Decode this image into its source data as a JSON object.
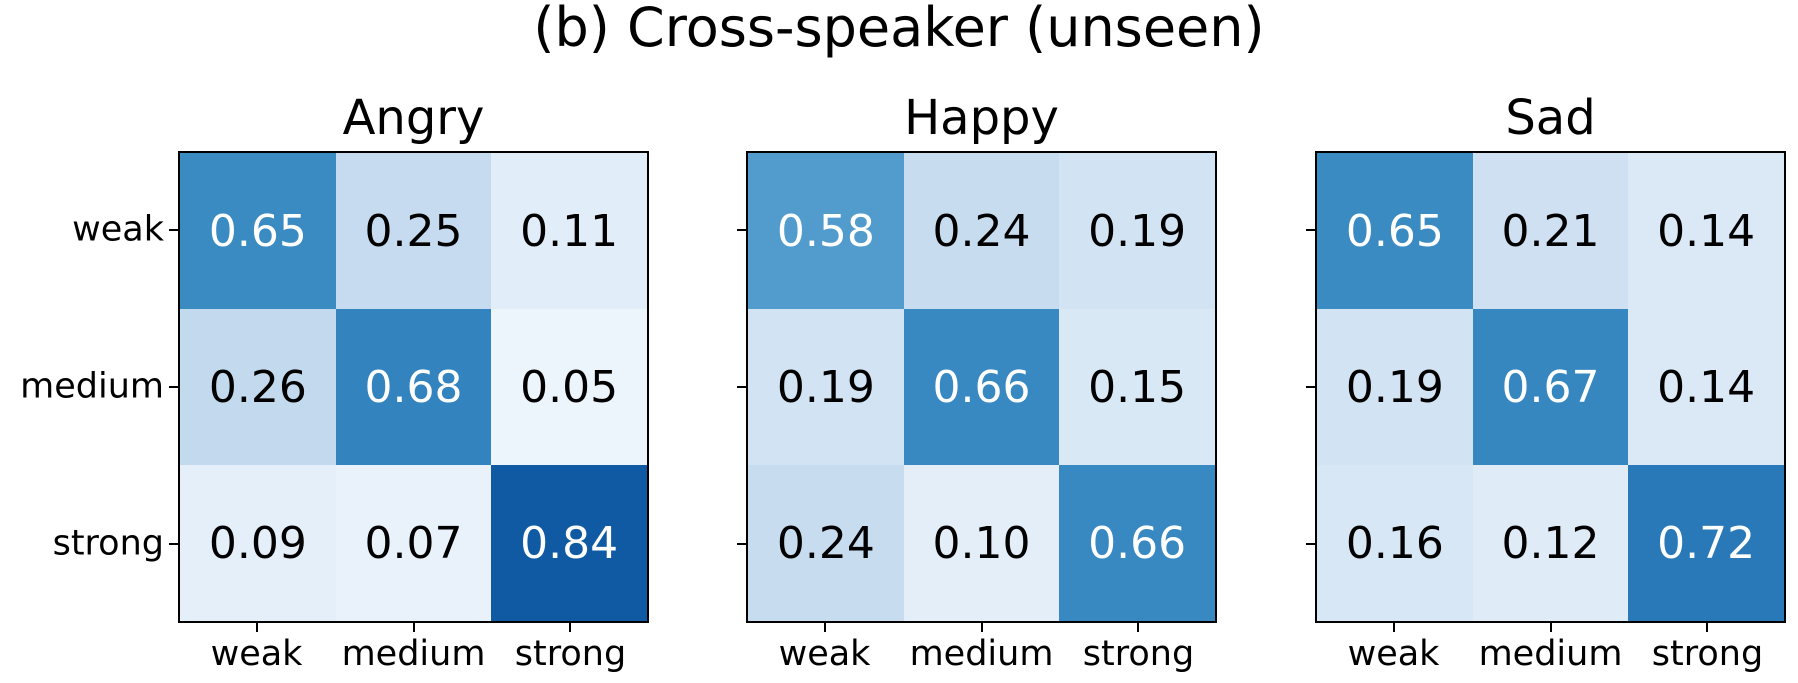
{
  "figure": {
    "title": "(b) Cross-speaker (unseen)"
  },
  "chart_data": [
    {
      "type": "heatmap",
      "title": "Angry",
      "row_labels": [
        "weak",
        "medium",
        "strong"
      ],
      "col_labels": [
        "weak",
        "medium",
        "strong"
      ],
      "values": [
        [
          0.65,
          0.25,
          0.11
        ],
        [
          0.26,
          0.68,
          0.05
        ],
        [
          0.09,
          0.07,
          0.84
        ]
      ],
      "labels": [
        [
          "0.65",
          "0.25",
          "0.11"
        ],
        [
          "0.26",
          "0.68",
          "0.05"
        ],
        [
          "0.09",
          "0.07",
          "0.84"
        ]
      ],
      "y_tick_labels_visible": true
    },
    {
      "type": "heatmap",
      "title": "Happy",
      "row_labels": [
        "weak",
        "medium",
        "strong"
      ],
      "col_labels": [
        "weak",
        "medium",
        "strong"
      ],
      "values": [
        [
          0.58,
          0.24,
          0.19
        ],
        [
          0.19,
          0.66,
          0.15
        ],
        [
          0.24,
          0.1,
          0.66
        ]
      ],
      "labels": [
        [
          "0.58",
          "0.24",
          "0.19"
        ],
        [
          "0.19",
          "0.66",
          "0.15"
        ],
        [
          "0.24",
          "0.10",
          "0.66"
        ]
      ],
      "y_tick_labels_visible": false
    },
    {
      "type": "heatmap",
      "title": "Sad",
      "row_labels": [
        "weak",
        "medium",
        "strong"
      ],
      "col_labels": [
        "weak",
        "medium",
        "strong"
      ],
      "values": [
        [
          0.65,
          0.21,
          0.14
        ],
        [
          0.19,
          0.67,
          0.14
        ],
        [
          0.16,
          0.12,
          0.72
        ]
      ],
      "labels": [
        [
          "0.65",
          "0.21",
          "0.14"
        ],
        [
          "0.19",
          "0.67",
          "0.14"
        ],
        [
          "0.16",
          "0.12",
          "0.72"
        ]
      ],
      "y_tick_labels_visible": false
    }
  ],
  "style": {
    "colormap": "Blues",
    "vmin": 0,
    "vmax": 1,
    "colormap_stops": [
      [
        0.0,
        [
          247,
          251,
          255
        ]
      ],
      [
        0.125,
        [
          222,
          235,
          247
        ]
      ],
      [
        0.25,
        [
          198,
          219,
          239
        ]
      ],
      [
        0.375,
        [
          158,
          202,
          225
        ]
      ],
      [
        0.5,
        [
          107,
          174,
          214
        ]
      ],
      [
        0.625,
        [
          66,
          146,
          198
        ]
      ],
      [
        0.75,
        [
          33,
          113,
          181
        ]
      ],
      [
        0.875,
        [
          8,
          81,
          156
        ]
      ],
      [
        1.0,
        [
          8,
          48,
          107
        ]
      ],
      [
        0.65,
        [
          59,
          139,
          195
        ]
      ],
      [
        0.84,
        [
          15,
          90,
          163
        ]
      ]
    ],
    "text_threshold": 0.5,
    "text_color_light": "#ffffff",
    "text_color_dark": "#000000",
    "frame_color": "#000000",
    "background": "#ffffff"
  }
}
